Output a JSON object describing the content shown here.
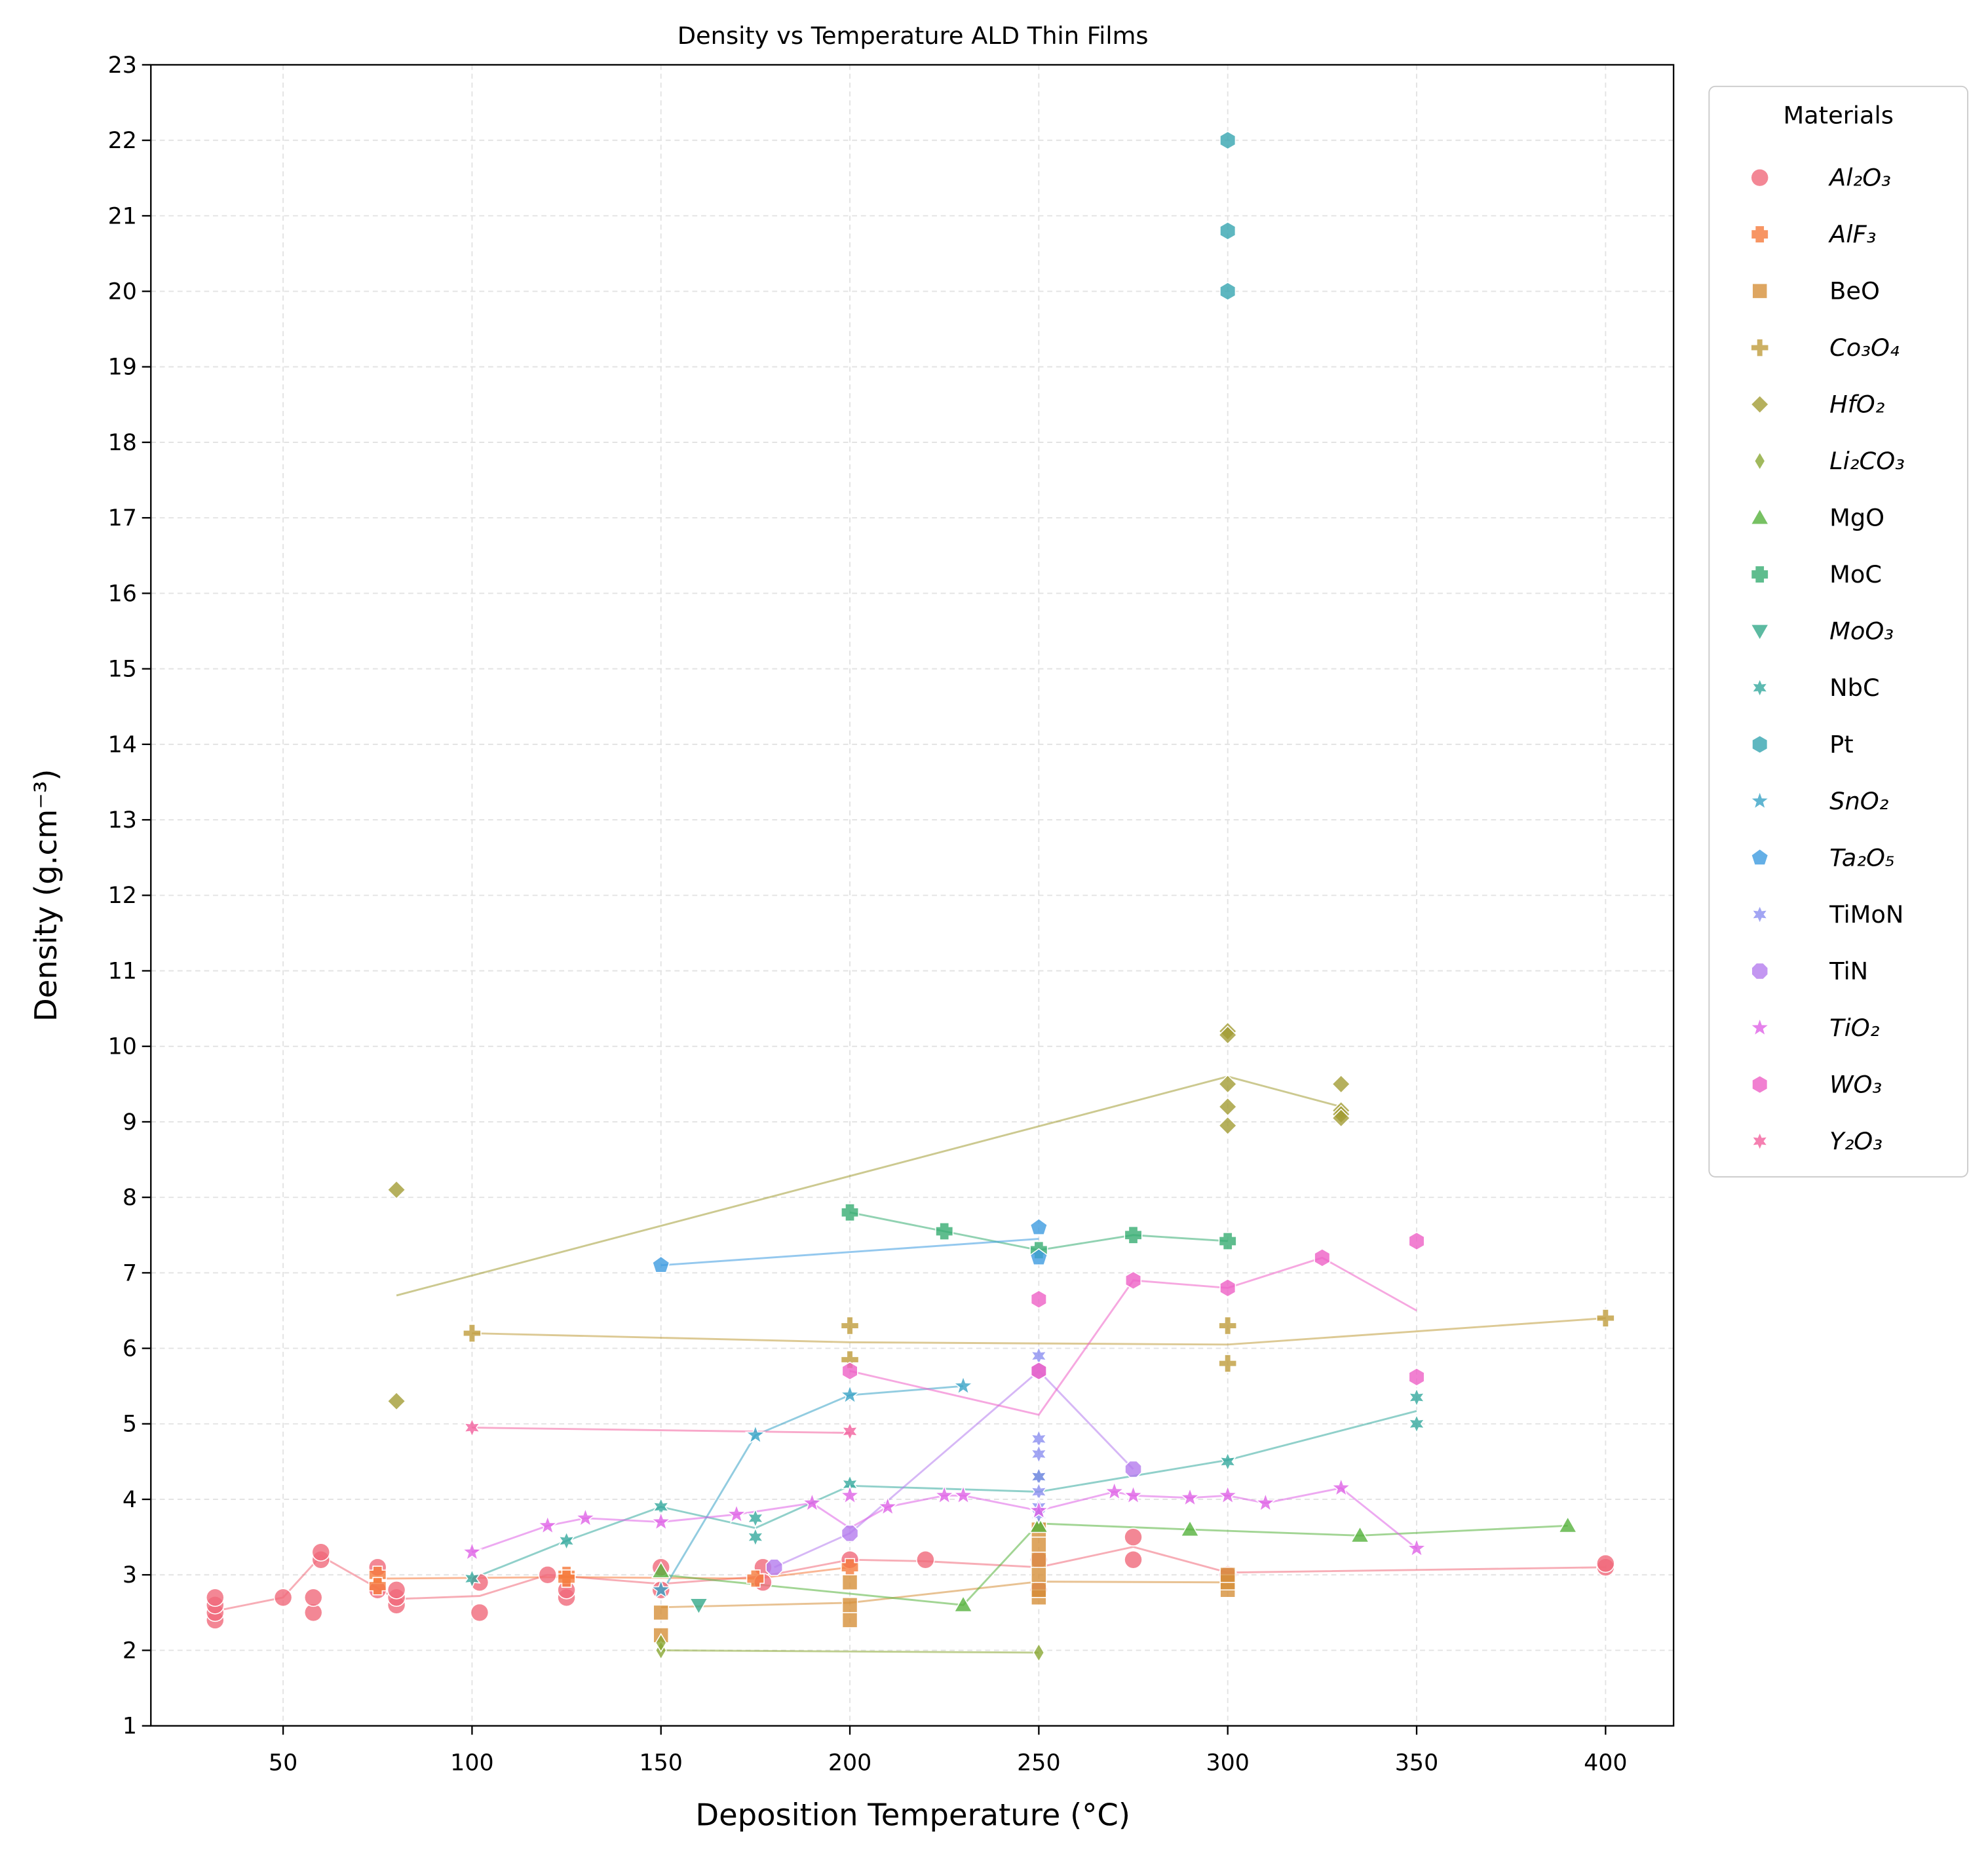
{
  "chart_data": {
    "type": "scatter",
    "title": "Density vs Temperature ALD Thin Films",
    "x_label": "Deposition Temperature (°C)",
    "y_label": "Density (g.cm⁻³)",
    "legend_title": "Materials",
    "legend_position": "outside right",
    "grid": true,
    "xlim": [
      15,
      418
    ],
    "ylim": [
      1,
      23
    ],
    "xticks": [
      50,
      100,
      150,
      200,
      250,
      300,
      350,
      400
    ],
    "yticks": [
      1,
      2,
      3,
      4,
      5,
      6,
      7,
      8,
      9,
      10,
      11,
      12,
      13,
      14,
      15,
      16,
      17,
      18,
      19,
      20,
      21,
      22,
      23
    ],
    "series": [
      {
        "name": "Al₂O₃",
        "color": "#f0697a",
        "marker": "circle",
        "x": [
          32,
          32,
          32,
          32,
          50,
          58,
          58,
          60,
          60,
          75,
          75,
          80,
          80,
          80,
          102,
          102,
          120,
          125,
          125,
          150,
          150,
          177,
          177,
          200,
          220,
          250,
          250,
          275,
          275,
          300,
          400,
          400
        ],
        "values": [
          2.4,
          2.5,
          2.6,
          2.7,
          2.7,
          2.5,
          2.7,
          3.2,
          3.3,
          2.8,
          3.1,
          2.6,
          2.7,
          2.8,
          2.5,
          2.9,
          3.0,
          2.7,
          2.8,
          3.1,
          2.8,
          3.1,
          2.9,
          3.2,
          3.2,
          2.8,
          3.2,
          3.2,
          3.5,
          3.0,
          3.1,
          3.15
        ],
        "trend": {
          "x": [
            32,
            50,
            60,
            80,
            102,
            120,
            150,
            177,
            200,
            220,
            250,
            275,
            300,
            400
          ],
          "values": [
            2.52,
            2.7,
            3.25,
            2.68,
            2.72,
            3.0,
            2.88,
            2.98,
            3.2,
            3.18,
            3.1,
            3.37,
            3.03,
            3.1
          ]
        }
      },
      {
        "name": "AlF₃",
        "color": "#f57a3c",
        "marker": "x",
        "x": [
          75,
          75,
          125,
          125,
          175,
          200
        ],
        "values": [
          3.0,
          2.85,
          3.0,
          2.95,
          2.95,
          3.1
        ],
        "trend": {
          "x": [
            75,
            125,
            175,
            200
          ],
          "values": [
            2.95,
            2.97,
            2.95,
            3.1
          ]
        }
      },
      {
        "name": "BeO",
        "color": "#d6903a",
        "marker": "square",
        "x": [
          150,
          150,
          200,
          200,
          200,
          250,
          250,
          250,
          250,
          250,
          250,
          300,
          300,
          300
        ],
        "values": [
          2.5,
          2.2,
          2.4,
          2.6,
          2.9,
          2.7,
          2.8,
          3.0,
          3.2,
          3.4,
          3.6,
          2.8,
          2.9,
          3.0
        ],
        "trend": {
          "x": [
            150,
            200,
            250,
            300
          ],
          "values": [
            2.57,
            2.63,
            2.91,
            2.9
          ]
        }
      },
      {
        "name": "Co₃O₄",
        "color": "#bf9c3c",
        "marker": "plus",
        "x": [
          100,
          200,
          200,
          300,
          300,
          400
        ],
        "values": [
          6.2,
          6.3,
          5.85,
          6.3,
          5.8,
          6.4
        ],
        "trend": {
          "x": [
            100,
            200,
            300,
            400
          ],
          "values": [
            6.2,
            6.08,
            6.05,
            6.4
          ]
        }
      },
      {
        "name": "HfO₂",
        "color": "#a39c35",
        "marker": "diamond",
        "x": [
          80,
          80,
          300,
          300,
          300,
          300,
          300,
          330,
          330,
          330,
          330
        ],
        "values": [
          8.1,
          5.3,
          10.2,
          10.15,
          9.5,
          9.2,
          8.95,
          9.5,
          9.15,
          9.1,
          9.05
        ],
        "trend": {
          "x": [
            80,
            300,
            330
          ],
          "values": [
            6.7,
            9.6,
            9.2
          ]
        }
      },
      {
        "name": "Li₂CO₃",
        "color": "#8aa835",
        "marker": "thin_diamond",
        "x": [
          150,
          150,
          250
        ],
        "values": [
          2.0,
          2.1,
          1.97
        ],
        "trend": {
          "x": [
            150,
            250
          ],
          "values": [
            2.0,
            1.97
          ]
        }
      },
      {
        "name": "MgO",
        "color": "#55b23c",
        "marker": "triangle",
        "x": [
          150,
          230,
          250,
          290,
          335,
          390
        ],
        "values": [
          3.05,
          2.6,
          3.65,
          3.6,
          3.52,
          3.65
        ],
        "trend": {
          "x": [
            150,
            230,
            250,
            290,
            335,
            390
          ],
          "values": [
            3.0,
            2.6,
            3.68,
            3.6,
            3.52,
            3.65
          ]
        }
      },
      {
        "name": "MoC",
        "color": "#37ad72",
        "marker": "x",
        "x": [
          200,
          225,
          250,
          275,
          300
        ],
        "values": [
          7.8,
          7.55,
          7.3,
          7.5,
          7.42
        ],
        "trend": {
          "x": [
            200,
            225,
            250,
            275,
            300
          ],
          "values": [
            7.8,
            7.55,
            7.3,
            7.5,
            7.42
          ]
        }
      },
      {
        "name": "MoO₃",
        "color": "#33a98a",
        "marker": "triangle_down",
        "x": [
          160
        ],
        "values": [
          2.6
        ]
      },
      {
        "name": "NbC",
        "color": "#34a99e",
        "marker": "star6",
        "x": [
          100,
          125,
          150,
          175,
          175,
          200,
          250,
          300,
          350,
          350
        ],
        "values": [
          2.95,
          3.45,
          3.9,
          3.75,
          3.5,
          4.2,
          4.3,
          4.5,
          5.35,
          5.0
        ],
        "trend": {
          "x": [
            100,
            125,
            150,
            175,
            200,
            250,
            300,
            350
          ],
          "values": [
            2.95,
            3.45,
            3.9,
            3.62,
            4.18,
            4.1,
            4.52,
            5.17
          ]
        }
      },
      {
        "name": "Pt",
        "color": "#36a5b0",
        "marker": "hexagon",
        "x": [
          300,
          300,
          300
        ],
        "values": [
          22,
          20.8,
          20
        ]
      },
      {
        "name": "SnO₂",
        "color": "#38a2c6",
        "marker": "star",
        "x": [
          150,
          175,
          200,
          230
        ],
        "values": [
          2.8,
          4.85,
          5.38,
          5.5
        ],
        "trend": {
          "x": [
            150,
            175,
            200,
            230
          ],
          "values": [
            2.75,
            4.85,
            5.38,
            5.5
          ]
        }
      },
      {
        "name": "Ta₂O₅",
        "color": "#3d9be0",
        "marker": "pentagon",
        "x": [
          150,
          250,
          250
        ],
        "values": [
          7.1,
          7.6,
          7.2
        ],
        "trend": {
          "x": [
            150,
            250
          ],
          "values": [
            7.1,
            7.45
          ]
        }
      },
      {
        "name": "TiMoN",
        "color": "#8b8ff0",
        "marker": "star6",
        "x": [
          250,
          250,
          250,
          250,
          250,
          250,
          250
        ],
        "values": [
          5.9,
          4.8,
          4.6,
          4.3,
          4.1,
          3.9,
          3.8
        ]
      },
      {
        "name": "TiN",
        "color": "#b47cee",
        "marker": "octagon",
        "x": [
          180,
          200,
          250,
          275
        ],
        "values": [
          3.1,
          3.55,
          5.7,
          4.4
        ],
        "trend": {
          "x": [
            180,
            200,
            250,
            275
          ],
          "values": [
            3.1,
            3.55,
            5.7,
            4.4
          ]
        }
      },
      {
        "name": "TiO₂",
        "color": "#df62e6",
        "marker": "star",
        "x": [
          100,
          120,
          130,
          150,
          170,
          190,
          200,
          210,
          225,
          230,
          250,
          270,
          275,
          290,
          300,
          310,
          330,
          350
        ],
        "values": [
          3.3,
          3.65,
          3.75,
          3.7,
          3.8,
          3.95,
          4.05,
          3.9,
          4.05,
          4.05,
          3.85,
          4.1,
          4.05,
          4.02,
          4.05,
          3.95,
          4.15,
          3.35
        ],
        "trend": {
          "x": [
            100,
            120,
            130,
            150,
            170,
            190,
            200,
            210,
            225,
            230,
            250,
            270,
            275,
            290,
            300,
            310,
            330,
            350
          ],
          "values": [
            3.3,
            3.65,
            3.75,
            3.7,
            3.8,
            3.95,
            3.62,
            3.9,
            4.05,
            4.05,
            3.85,
            4.1,
            4.05,
            4.02,
            4.05,
            3.95,
            4.15,
            3.35
          ]
        }
      },
      {
        "name": "WO₃",
        "color": "#ee60c6",
        "marker": "hexagon",
        "x": [
          200,
          250,
          250,
          275,
          300,
          325,
          350,
          350
        ],
        "values": [
          5.7,
          6.65,
          5.7,
          6.9,
          6.8,
          7.2,
          7.42,
          5.62
        ],
        "trend": {
          "x": [
            200,
            250,
            275,
            300,
            325,
            350
          ],
          "values": [
            5.7,
            5.12,
            6.9,
            6.8,
            7.2,
            6.5
          ]
        }
      },
      {
        "name": "Y₂O₃",
        "color": "#f2609e",
        "marker": "star6",
        "x": [
          100,
          200
        ],
        "values": [
          4.95,
          4.9
        ],
        "trend": {
          "x": [
            100,
            200
          ],
          "values": [
            4.95,
            4.88
          ]
        }
      }
    ]
  }
}
